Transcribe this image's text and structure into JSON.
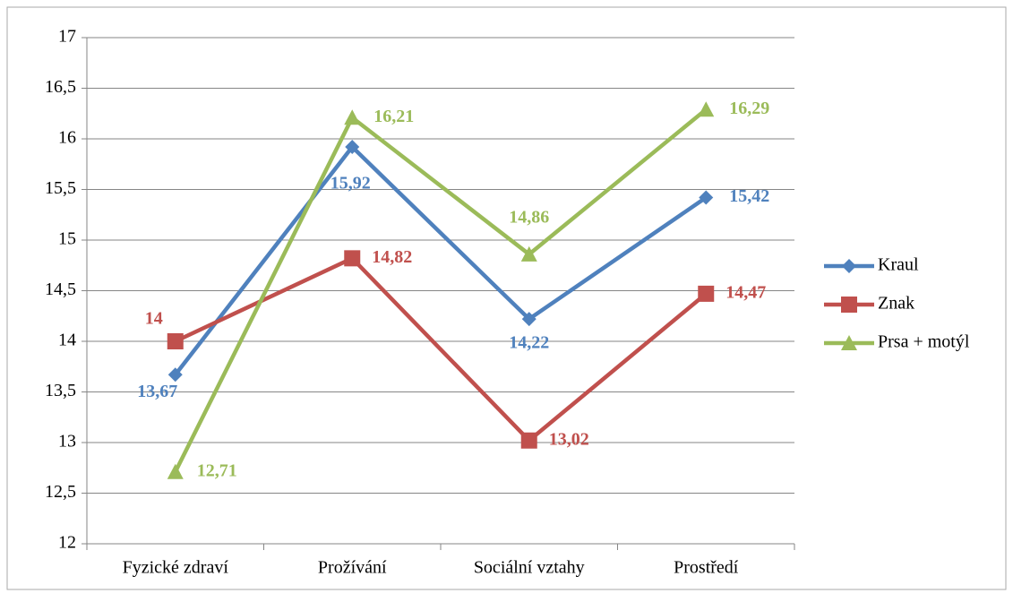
{
  "chart_data": {
    "type": "line",
    "categories": [
      "Fyzické zdraví",
      "Prožívání",
      "Sociální vztahy",
      "Prostředí"
    ],
    "series": [
      {
        "name": "Kraul",
        "color": "#4f81bd",
        "values": [
          13.67,
          15.92,
          14.22,
          15.42
        ],
        "value_labels": [
          "13,67",
          "15,92",
          "14,22",
          "15,42"
        ]
      },
      {
        "name": "Znak",
        "color": "#c0504d",
        "values": [
          14,
          14.82,
          13.02,
          14.47
        ],
        "value_labels": [
          "14",
          "14,82",
          "13,02",
          "14,47"
        ]
      },
      {
        "name": "Prsa + motýl",
        "color": "#9bbb59",
        "values": [
          12.71,
          16.21,
          14.86,
          16.29
        ],
        "value_labels": [
          "12,71",
          "16,21",
          "14,86",
          "16,29"
        ]
      }
    ],
    "ylim": [
      12,
      17
    ],
    "yticks": [
      12,
      {
        "value": 12.5,
        "label": "12,5"
      },
      13,
      {
        "value": 13.5,
        "label": "13,5"
      },
      14,
      {
        "value": 14.5,
        "label": "14,5"
      },
      15,
      {
        "value": 15.5,
        "label": "15,5"
      },
      16,
      {
        "value": 16.5,
        "label": "16,5"
      },
      17
    ],
    "grid": true,
    "legend": "right"
  }
}
